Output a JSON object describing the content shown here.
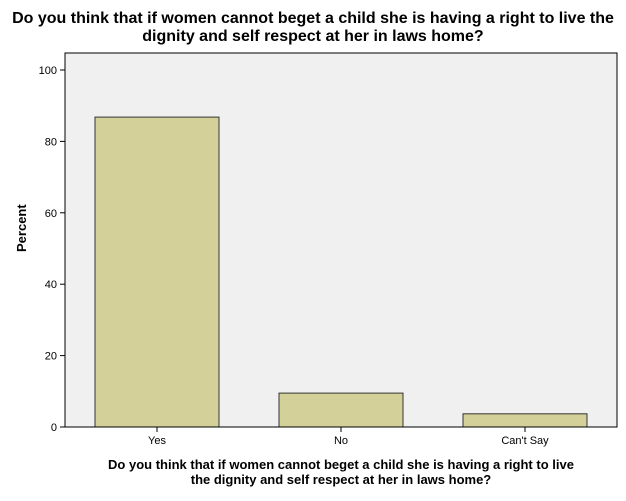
{
  "chart_data": {
    "type": "bar",
    "title": "Do you think that if women cannot beget a child she is having a right to live the dignity and self respect at her in laws home?",
    "title_lines": [
      "Do you think that if women cannot beget a child she is having a right to live the",
      "dignity and self respect at her in laws home?"
    ],
    "xlabel": "Do you think that if women cannot beget a child she is having a right to live the dignity and self respect at her in laws home?",
    "xlabel_lines": [
      "Do you think that if women cannot beget a child she is having a right to live",
      "the dignity and self respect at her in laws home?"
    ],
    "ylabel": "Percent",
    "categories": [
      "Yes",
      "No",
      "Can't Say"
    ],
    "values": [
      86.8,
      9.5,
      3.7
    ],
    "ylim": [
      0,
      100
    ],
    "yticks": [
      0,
      20,
      40,
      60,
      80,
      100
    ],
    "grid": false,
    "legend": "none",
    "colors": {
      "bar_fill": "#d4d09a",
      "bar_stroke": "#333333",
      "plot_background": "#f0f0f0",
      "axis": "#000000"
    }
  }
}
